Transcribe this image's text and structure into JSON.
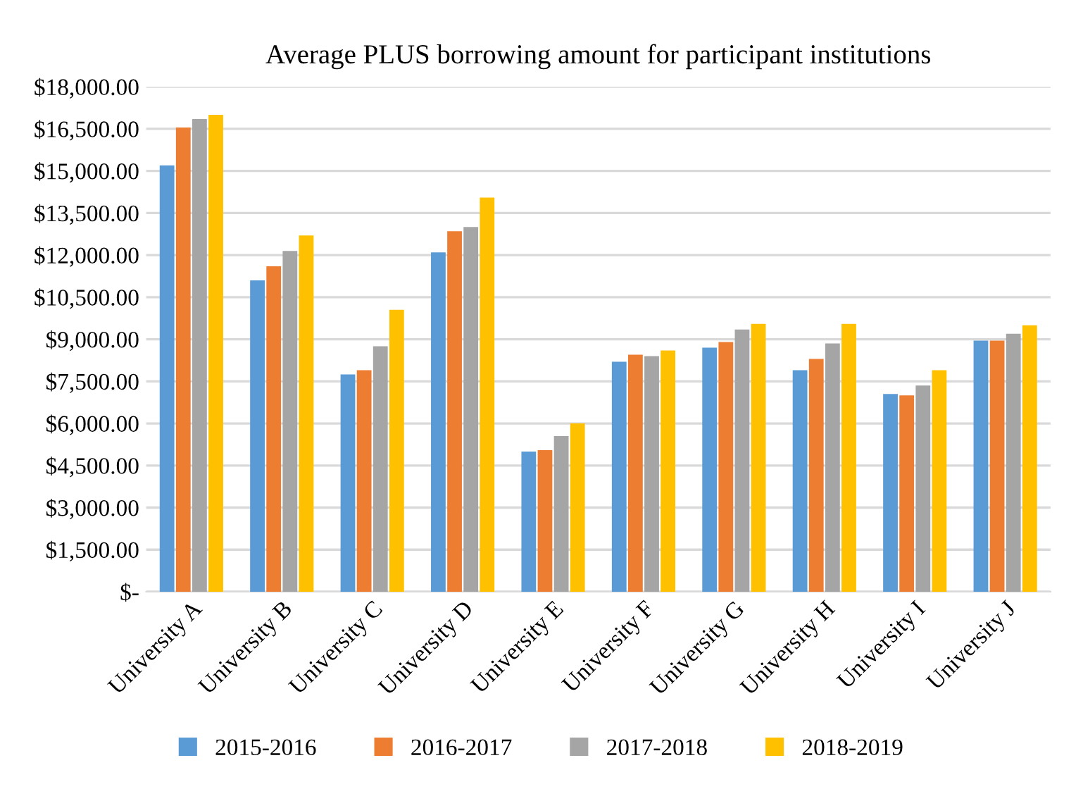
{
  "chart_data": {
    "type": "bar",
    "title": "Average PLUS borrowing amount for participant institutions",
    "categories": [
      "University A",
      "University B",
      "University C",
      "University D",
      "University E",
      "University F",
      "University G",
      "University H",
      "University I",
      "University J"
    ],
    "series": [
      {
        "name": "2015-2016",
        "color": "#5b9bd5",
        "values": [
          15200,
          11100,
          7750,
          12100,
          5000,
          8200,
          8700,
          7900,
          7050,
          8950
        ]
      },
      {
        "name": "2016-2017",
        "color": "#ed7d31",
        "values": [
          16550,
          11600,
          7900,
          12850,
          5050,
          8450,
          8900,
          8300,
          7000,
          8950
        ]
      },
      {
        "name": "2017-2018",
        "color": "#a5a5a5",
        "values": [
          16850,
          12150,
          8750,
          13000,
          5550,
          8400,
          9350,
          8850,
          7350,
          9200
        ]
      },
      {
        "name": "2018-2019",
        "color": "#ffc000",
        "values": [
          17000,
          12700,
          10050,
          14050,
          6000,
          8600,
          9550,
          9550,
          7900,
          9500
        ]
      }
    ],
    "ylim": [
      0,
      18000
    ],
    "yticks": [
      {
        "value": 0,
        "label": "$-"
      },
      {
        "value": 1500,
        "label": "$1,500.00"
      },
      {
        "value": 3000,
        "label": "$3,000.00"
      },
      {
        "value": 4500,
        "label": "$4,500.00"
      },
      {
        "value": 6000,
        "label": "$6,000.00"
      },
      {
        "value": 7500,
        "label": "$7,500.00"
      },
      {
        "value": 9000,
        "label": "$9,000.00"
      },
      {
        "value": 10500,
        "label": "$10,500.00"
      },
      {
        "value": 12000,
        "label": "$12,000.00"
      },
      {
        "value": 13500,
        "label": "$13,500.00"
      },
      {
        "value": 15000,
        "label": "$15,000.00"
      },
      {
        "value": 16500,
        "label": "$16,500.00"
      },
      {
        "value": 18000,
        "label": "$18,000.00"
      }
    ],
    "grid": "y",
    "legend": "bottom"
  }
}
